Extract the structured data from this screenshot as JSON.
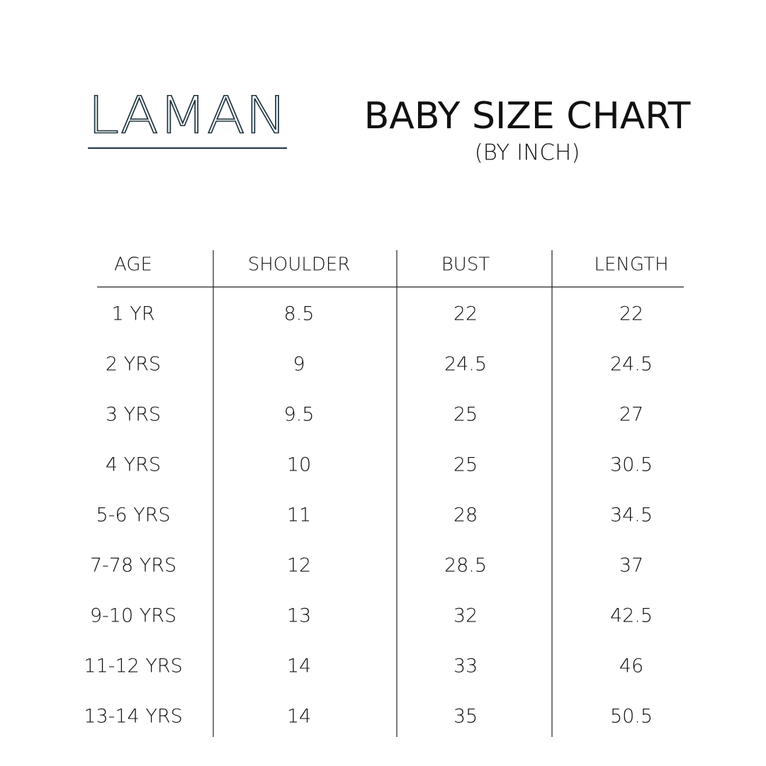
{
  "header": {
    "logo": "LAMAN",
    "title": "BABY SIZE CHART",
    "subtitle": "(BY INCH)"
  },
  "table": {
    "columns": [
      "AGE",
      "SHOULDER",
      "BUST",
      "LENGTH"
    ],
    "rows": [
      [
        "1 YR",
        8.5,
        22,
        22
      ],
      [
        "2 YRS",
        9,
        24.5,
        24.5
      ],
      [
        "3 YRS",
        9.5,
        25,
        27
      ],
      [
        "4 YRS",
        10,
        25,
        30.5
      ],
      [
        "5-6 YRS",
        11,
        28,
        34.5
      ],
      [
        "7-78 YRS",
        12,
        28.5,
        37
      ],
      [
        "9-10 YRS",
        13,
        32,
        42.5
      ],
      [
        "11-12 YRS",
        14,
        33,
        46
      ],
      [
        "13-14 YRS",
        14,
        35,
        50.5
      ]
    ]
  }
}
